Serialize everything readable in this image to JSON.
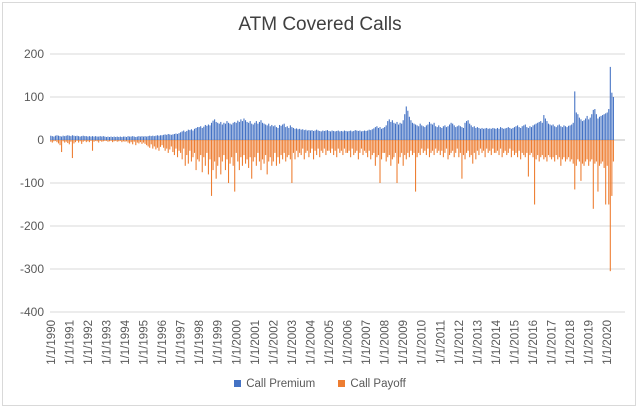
{
  "chart_data": {
    "type": "bar",
    "title": "ATM Covered Calls",
    "xlabel": "",
    "ylabel": "",
    "ylim": [
      -400,
      200
    ],
    "yticks": [
      200,
      100,
      0,
      -100,
      -200,
      -300,
      -400
    ],
    "categories": [
      "1/1/1990",
      "1/1/1991",
      "1/1/1992",
      "1/1/1993",
      "1/1/1994",
      "1/1/1995",
      "1/1/1996",
      "1/1/1997",
      "1/1/1998",
      "1/1/1999",
      "1/1/2000",
      "1/1/2001",
      "1/1/2002",
      "1/1/2003",
      "1/1/2004",
      "1/1/2005",
      "1/1/2006",
      "1/1/2007",
      "1/1/2008",
      "1/1/2009",
      "1/1/2010",
      "1/1/2011",
      "1/1/2012",
      "1/1/2013",
      "1/1/2014",
      "1/1/2015",
      "1/1/2016",
      "1/1/2017",
      "1/1/2018",
      "1/1/2019",
      "1/1/2020"
    ],
    "grid": "horizontal",
    "legend_position": "bottom",
    "series": [
      {
        "name": "Call Premium",
        "color": "#4472c4",
        "values": [
          [
            10,
            9,
            8,
            10,
            11,
            10,
            9,
            8,
            10,
            9,
            10,
            11
          ],
          [
            10,
            9,
            11,
            10,
            9,
            10,
            9,
            8,
            9,
            10,
            9,
            9
          ],
          [
            8,
            9,
            8,
            9,
            8,
            9,
            8,
            8,
            9,
            8,
            9,
            8
          ],
          [
            7,
            8,
            7,
            8,
            7,
            8,
            7,
            8,
            7,
            8,
            7,
            8
          ],
          [
            8,
            7,
            9,
            8,
            8,
            9,
            8,
            7,
            8,
            9,
            8,
            9
          ],
          [
            8,
            9,
            8,
            9,
            10,
            9,
            10,
            9,
            10,
            11,
            10,
            11
          ],
          [
            11,
            12,
            13,
            12,
            14,
            13,
            12,
            13,
            14,
            15,
            14,
            16
          ],
          [
            18,
            20,
            22,
            19,
            21,
            24,
            23,
            25,
            22,
            26,
            28,
            30
          ],
          [
            30,
            32,
            28,
            31,
            35,
            33,
            36,
            34,
            40,
            45,
            48,
            42
          ],
          [
            40,
            38,
            42,
            36,
            40,
            38,
            44,
            40,
            38,
            36,
            40,
            42
          ],
          [
            40,
            45,
            42,
            48,
            44,
            50,
            46,
            42,
            40,
            44,
            38,
            36
          ],
          [
            40,
            44,
            38,
            42,
            46,
            40,
            38,
            36,
            34,
            38,
            32,
            35
          ],
          [
            32,
            34,
            30,
            28,
            35,
            33,
            36,
            38,
            30,
            32,
            28,
            34
          ],
          [
            30,
            28,
            26,
            27,
            25,
            26,
            24,
            25,
            23,
            24,
            22,
            23
          ],
          [
            22,
            23,
            21,
            22,
            24,
            22,
            21,
            20,
            22,
            21,
            22,
            23
          ],
          [
            21,
            20,
            22,
            21,
            20,
            21,
            22,
            20,
            21,
            20,
            22,
            21
          ],
          [
            20,
            21,
            22,
            20,
            21,
            23,
            22,
            21,
            22,
            20,
            21,
            22
          ],
          [
            21,
            22,
            24,
            23,
            25,
            27,
            30,
            32,
            28,
            30,
            26,
            28
          ],
          [
            30,
            34,
            44,
            48,
            42,
            46,
            40,
            38,
            42,
            36,
            40,
            38
          ],
          [
            46,
            60,
            78,
            68,
            54,
            46,
            40,
            38,
            36,
            34,
            32,
            38
          ],
          [
            34,
            32,
            30,
            34,
            36,
            42,
            38,
            36,
            40,
            32,
            30,
            34
          ],
          [
            30,
            28,
            32,
            34,
            30,
            32,
            36,
            40,
            38,
            34,
            30,
            32
          ],
          [
            34,
            32,
            30,
            28,
            40,
            44,
            46,
            38,
            34,
            30,
            32,
            28
          ],
          [
            30,
            28,
            26,
            28,
            26,
            27,
            28,
            26,
            27,
            26,
            28,
            27
          ],
          [
            26,
            28,
            26,
            30,
            28,
            26,
            27,
            28,
            30,
            28,
            26,
            28
          ],
          [
            30,
            32,
            34,
            30,
            28,
            32,
            34,
            36,
            30,
            28,
            32,
            30
          ],
          [
            34,
            36,
            38,
            40,
            42,
            44,
            40,
            58,
            50,
            44,
            38,
            36
          ],
          [
            34,
            36,
            32,
            30,
            34,
            36,
            32,
            30,
            34,
            32,
            30,
            33
          ],
          [
            34,
            36,
            40,
            113,
            64,
            60,
            52,
            48,
            44,
            46,
            50,
            56
          ],
          [
            48,
            52,
            60,
            70,
            72,
            60,
            50,
            54,
            56,
            58,
            60,
            62
          ],
          [
            64,
            72,
            170,
            110,
            100,
            0,
            0,
            0,
            0,
            0,
            0,
            0
          ]
        ]
      },
      {
        "name": "Call Payoff",
        "color": "#ed7d31",
        "values": [
          [
            -4,
            -6,
            -3,
            -2,
            -5,
            -8,
            -12,
            -28,
            -3,
            -6,
            -4,
            -7
          ],
          [
            -10,
            -4,
            -42,
            -8,
            -5,
            -2,
            -6,
            -3,
            -9,
            -4,
            -2,
            -5
          ],
          [
            -3,
            -5,
            -2,
            -25,
            -4,
            -2,
            -3,
            -6,
            -2,
            -4,
            -3,
            -2
          ],
          [
            -2,
            -4,
            -3,
            -2,
            -5,
            -3,
            -2,
            -4,
            -3,
            -2,
            -5,
            -3
          ],
          [
            -4,
            -3,
            -6,
            -8,
            -5,
            -10,
            -4,
            -12,
            -6,
            -8,
            -5,
            -9
          ],
          [
            -6,
            -9,
            -12,
            -15,
            -18,
            -10,
            -20,
            -15,
            -22,
            -18,
            -25,
            -16
          ],
          [
            -12,
            -18,
            -25,
            -20,
            -30,
            -22,
            -15,
            -28,
            -35,
            -20,
            -40,
            -25
          ],
          [
            -30,
            -45,
            -20,
            -60,
            -35,
            -55,
            -25,
            -50,
            -40,
            -30,
            -70,
            -45
          ],
          [
            -50,
            -35,
            -75,
            -40,
            -60,
            -30,
            -80,
            -45,
            -130,
            -70,
            -50,
            -90
          ],
          [
            -60,
            -40,
            -80,
            -50,
            -35,
            -70,
            -45,
            -100,
            -55,
            -40,
            -60,
            -120
          ],
          [
            -30,
            -50,
            -70,
            -40,
            -60,
            -35,
            -55,
            -45,
            -65,
            -40,
            -90,
            -50
          ],
          [
            -40,
            -60,
            -30,
            -50,
            -70,
            -45,
            -55,
            -35,
            -80,
            -50,
            -40,
            -60
          ],
          [
            -50,
            -30,
            -60,
            -40,
            -55,
            -35,
            -45,
            -30,
            -50,
            -40,
            -35,
            -45
          ],
          [
            -100,
            -30,
            -45,
            -25,
            -40,
            -30,
            -35,
            -20,
            -45,
            -30,
            -25,
            -40
          ],
          [
            -30,
            -20,
            -45,
            -25,
            -35,
            -20,
            -40,
            -25,
            -30,
            -20,
            -35,
            -25
          ],
          [
            -25,
            -30,
            -20,
            -35,
            -25,
            -40,
            -20,
            -30,
            -25,
            -35,
            -20,
            -30
          ],
          [
            -30,
            -25,
            -40,
            -20,
            -35,
            -30,
            -25,
            -45,
            -30,
            -20,
            -35,
            -25
          ],
          [
            -30,
            -40,
            -25,
            -45,
            -35,
            -30,
            -60,
            -40,
            -35,
            -100,
            -45,
            -30
          ],
          [
            -30,
            -50,
            -40,
            -35,
            -60,
            -45,
            -40,
            -30,
            -100,
            -55,
            -40,
            -30
          ],
          [
            -60,
            -35,
            -45,
            -30,
            -40,
            -25,
            -35,
            -30,
            -120,
            -40,
            -30,
            -35
          ],
          [
            -20,
            -30,
            -25,
            -35,
            -20,
            -40,
            -30,
            -25,
            -35,
            -20,
            -30,
            -25
          ],
          [
            -35,
            -25,
            -40,
            -30,
            -20,
            -45,
            -35,
            -30,
            -25,
            -40,
            -30,
            -20
          ],
          [
            -40,
            -30,
            -90,
            -35,
            -45,
            -30,
            -25,
            -40,
            -35,
            -55,
            -30,
            -45
          ],
          [
            -25,
            -35,
            -20,
            -30,
            -25,
            -40,
            -20,
            -30,
            -25,
            -35,
            -20,
            -30
          ],
          [
            -30,
            -25,
            -35,
            -20,
            -40,
            -30,
            -25,
            -35,
            -30,
            -20,
            -40,
            -25
          ],
          [
            -35,
            -30,
            -40,
            -25,
            -45,
            -30,
            -35,
            -40,
            -30,
            -85,
            -35,
            -30
          ],
          [
            -40,
            -150,
            -45,
            -35,
            -50,
            -40,
            -35,
            -45,
            -40,
            -50,
            -35,
            -40
          ],
          [
            -45,
            -40,
            -50,
            -35,
            -45,
            -40,
            -60,
            -45,
            -40,
            -50,
            -45,
            -40
          ],
          [
            -50,
            -45,
            -55,
            -115,
            -60,
            -45,
            -50,
            -95,
            -55,
            -60,
            -50,
            -45
          ],
          [
            -60,
            -50,
            -45,
            -160,
            -55,
            -50,
            -120,
            -60,
            -55,
            -50,
            -65,
            -150
          ],
          [
            -60,
            -150,
            -305,
            -130,
            -50,
            0,
            0,
            0,
            0,
            0,
            0,
            0
          ]
        ]
      }
    ]
  }
}
